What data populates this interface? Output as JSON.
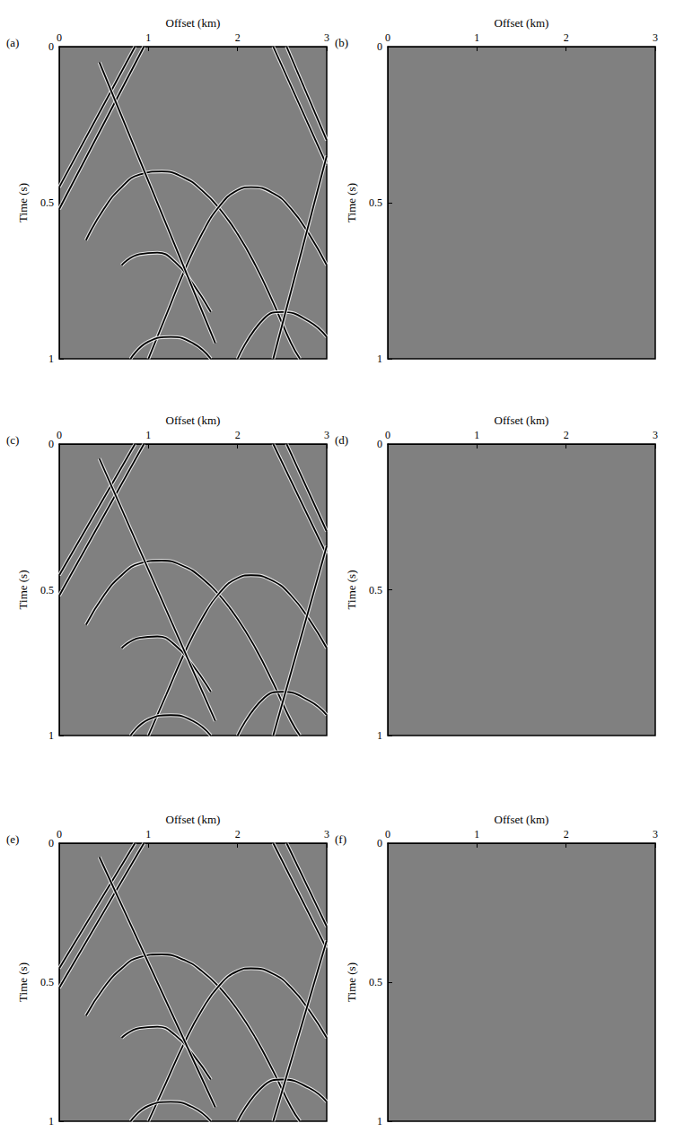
{
  "chart_data": [
    {
      "type": "line",
      "panel": "(a)",
      "x_label": "Offset (km)",
      "y_label": "Time (s)",
      "xlim": [
        0,
        3
      ],
      "xticks": [
        0,
        1,
        2,
        3
      ],
      "ylim": [
        0,
        1
      ],
      "yticks": [
        0,
        0.5,
        1
      ],
      "grid": false,
      "series": [
        {
          "color": "#000000",
          "values": [
            [
              0.3,
              0.62
            ],
            [
              0.5,
              0.52
            ],
            [
              0.7,
              0.45
            ],
            [
              0.9,
              0.41
            ],
            [
              1.15,
              0.4
            ],
            [
              1.4,
              0.42
            ],
            [
              1.6,
              0.46
            ],
            [
              1.8,
              0.52
            ],
            [
              2.0,
              0.6
            ],
            [
              2.2,
              0.7
            ],
            [
              2.4,
              0.82
            ],
            [
              2.6,
              0.95
            ],
            [
              2.7,
              1.0
            ]
          ]
        },
        {
          "color": "#000000",
          "values": [
            [
              1.0,
              1.0
            ],
            [
              1.2,
              0.86
            ],
            [
              1.4,
              0.72
            ],
            [
              1.6,
              0.6
            ],
            [
              1.8,
              0.51
            ],
            [
              2.0,
              0.46
            ],
            [
              2.15,
              0.45
            ],
            [
              2.4,
              0.47
            ],
            [
              2.6,
              0.52
            ],
            [
              2.8,
              0.6
            ],
            [
              3.0,
              0.7
            ]
          ]
        },
        {
          "color": "#000000",
          "values": [
            [
              0.7,
              0.7
            ],
            [
              0.9,
              0.665
            ],
            [
              1.1,
              0.66
            ],
            [
              1.3,
              0.69
            ],
            [
              1.5,
              0.76
            ],
            [
              1.7,
              0.85
            ]
          ]
        },
        {
          "color": "#000000",
          "values": [
            [
              0.8,
              1.0
            ],
            [
              1.0,
              0.945
            ],
            [
              1.25,
              0.93
            ],
            [
              1.5,
              0.95
            ],
            [
              1.7,
              1.0
            ]
          ]
        },
        {
          "color": "#000000",
          "values": [
            [
              2.0,
              1.0
            ],
            [
              2.3,
              0.87
            ],
            [
              2.5,
              0.85
            ],
            [
              2.8,
              0.88
            ],
            [
              3.0,
              0.93
            ]
          ]
        },
        {
          "color": "#000000",
          "values": [
            [
              0.85,
              0
            ],
            [
              0,
              0.45
            ]
          ]
        },
        {
          "color": "#000000",
          "values": [
            [
              0.95,
              0
            ],
            [
              0,
              0.52
            ]
          ]
        },
        {
          "color": "#000000",
          "values": [
            [
              2.4,
              0
            ],
            [
              3,
              0.38
            ]
          ]
        },
        {
          "color": "#000000",
          "values": [
            [
              2.55,
              0
            ],
            [
              3,
              0.3
            ]
          ]
        },
        {
          "color": "#000000",
          "values": [
            [
              0.45,
              0.05
            ],
            [
              1.75,
              0.95
            ]
          ]
        },
        {
          "color": "#000000",
          "values": [
            [
              3.0,
              0.35
            ],
            [
              2.4,
              1.0
            ]
          ]
        }
      ]
    },
    {
      "type": "line",
      "panel": "(b)",
      "x_label": "Offset (km)",
      "y_label": "Time (s)",
      "xlim": [
        0,
        3
      ],
      "xticks": [
        0,
        1,
        2,
        3
      ],
      "ylim": [
        0,
        1
      ],
      "yticks": [
        0,
        0.5,
        1
      ],
      "grid": false,
      "series": []
    },
    {
      "type": "line",
      "panel": "(c)",
      "x_label": "Offset (km)",
      "y_label": "Time (s)",
      "xlim": [
        0,
        3
      ],
      "xticks": [
        0,
        1,
        2,
        3
      ],
      "ylim": [
        0,
        1
      ],
      "yticks": [
        0,
        0.5,
        1
      ],
      "grid": false,
      "series": [
        {
          "color": "#000000",
          "values": [
            [
              0.3,
              0.62
            ],
            [
              0.5,
              0.52
            ],
            [
              0.7,
              0.45
            ],
            [
              0.9,
              0.41
            ],
            [
              1.15,
              0.4
            ],
            [
              1.4,
              0.42
            ],
            [
              1.6,
              0.46
            ],
            [
              1.8,
              0.52
            ],
            [
              2.0,
              0.6
            ],
            [
              2.2,
              0.7
            ],
            [
              2.4,
              0.82
            ],
            [
              2.6,
              0.95
            ],
            [
              2.7,
              1.0
            ]
          ]
        },
        {
          "color": "#000000",
          "values": [
            [
              1.0,
              1.0
            ],
            [
              1.2,
              0.86
            ],
            [
              1.4,
              0.72
            ],
            [
              1.6,
              0.6
            ],
            [
              1.8,
              0.51
            ],
            [
              2.0,
              0.46
            ],
            [
              2.15,
              0.45
            ],
            [
              2.4,
              0.47
            ],
            [
              2.6,
              0.52
            ],
            [
              2.8,
              0.6
            ],
            [
              3.0,
              0.7
            ]
          ]
        },
        {
          "color": "#000000",
          "values": [
            [
              0.7,
              0.7
            ],
            [
              0.9,
              0.665
            ],
            [
              1.1,
              0.66
            ],
            [
              1.3,
              0.69
            ],
            [
              1.5,
              0.76
            ],
            [
              1.7,
              0.85
            ]
          ]
        },
        {
          "color": "#000000",
          "values": [
            [
              0.8,
              1.0
            ],
            [
              1.0,
              0.945
            ],
            [
              1.25,
              0.93
            ],
            [
              1.5,
              0.95
            ],
            [
              1.7,
              1.0
            ]
          ]
        },
        {
          "color": "#000000",
          "values": [
            [
              2.0,
              1.0
            ],
            [
              2.3,
              0.87
            ],
            [
              2.5,
              0.85
            ],
            [
              2.8,
              0.88
            ],
            [
              3.0,
              0.93
            ]
          ]
        },
        {
          "color": "#000000",
          "values": [
            [
              0.85,
              0
            ],
            [
              0,
              0.45
            ]
          ]
        },
        {
          "color": "#000000",
          "values": [
            [
              0.95,
              0
            ],
            [
              0,
              0.52
            ]
          ]
        },
        {
          "color": "#000000",
          "values": [
            [
              2.4,
              0
            ],
            [
              3,
              0.38
            ]
          ]
        },
        {
          "color": "#000000",
          "values": [
            [
              2.55,
              0
            ],
            [
              3,
              0.3
            ]
          ]
        },
        {
          "color": "#000000",
          "values": [
            [
              0.45,
              0.05
            ],
            [
              1.75,
              0.95
            ]
          ]
        },
        {
          "color": "#000000",
          "values": [
            [
              3.0,
              0.35
            ],
            [
              2.4,
              1.0
            ]
          ]
        }
      ]
    },
    {
      "type": "line",
      "panel": "(d)",
      "x_label": "Offset (km)",
      "y_label": "Time (s)",
      "xlim": [
        0,
        3
      ],
      "xticks": [
        0,
        1,
        2,
        3
      ],
      "ylim": [
        0,
        1
      ],
      "yticks": [
        0,
        0.5,
        1
      ],
      "grid": false,
      "series": []
    },
    {
      "type": "line",
      "panel": "(e)",
      "x_label": "Offset (km)",
      "y_label": "Time (s)",
      "xlim": [
        0,
        3
      ],
      "xticks": [
        0,
        1,
        2,
        3
      ],
      "ylim": [
        0,
        1
      ],
      "yticks": [
        0,
        0.5,
        1
      ],
      "grid": false,
      "series": [
        {
          "color": "#000000",
          "values": [
            [
              0.3,
              0.62
            ],
            [
              0.5,
              0.52
            ],
            [
              0.7,
              0.45
            ],
            [
              0.9,
              0.41
            ],
            [
              1.15,
              0.4
            ],
            [
              1.4,
              0.42
            ],
            [
              1.6,
              0.46
            ],
            [
              1.8,
              0.52
            ],
            [
              2.0,
              0.6
            ],
            [
              2.2,
              0.7
            ],
            [
              2.4,
              0.82
            ],
            [
              2.6,
              0.95
            ],
            [
              2.7,
              1.0
            ]
          ]
        },
        {
          "color": "#000000",
          "values": [
            [
              1.0,
              1.0
            ],
            [
              1.2,
              0.86
            ],
            [
              1.4,
              0.72
            ],
            [
              1.6,
              0.6
            ],
            [
              1.8,
              0.51
            ],
            [
              2.0,
              0.46
            ],
            [
              2.15,
              0.45
            ],
            [
              2.4,
              0.47
            ],
            [
              2.6,
              0.52
            ],
            [
              2.8,
              0.6
            ],
            [
              3.0,
              0.7
            ]
          ]
        },
        {
          "color": "#000000",
          "values": [
            [
              0.7,
              0.7
            ],
            [
              0.9,
              0.665
            ],
            [
              1.1,
              0.66
            ],
            [
              1.3,
              0.69
            ],
            [
              1.5,
              0.76
            ],
            [
              1.7,
              0.85
            ]
          ]
        },
        {
          "color": "#000000",
          "values": [
            [
              0.8,
              1.0
            ],
            [
              1.0,
              0.945
            ],
            [
              1.25,
              0.93
            ],
            [
              1.5,
              0.95
            ],
            [
              1.7,
              1.0
            ]
          ]
        },
        {
          "color": "#000000",
          "values": [
            [
              2.0,
              1.0
            ],
            [
              2.3,
              0.87
            ],
            [
              2.5,
              0.85
            ],
            [
              2.8,
              0.88
            ],
            [
              3.0,
              0.93
            ]
          ]
        },
        {
          "color": "#000000",
          "values": [
            [
              0.85,
              0
            ],
            [
              0,
              0.45
            ]
          ]
        },
        {
          "color": "#000000",
          "values": [
            [
              0.95,
              0
            ],
            [
              0,
              0.52
            ]
          ]
        },
        {
          "color": "#000000",
          "values": [
            [
              2.4,
              0
            ],
            [
              3,
              0.38
            ]
          ]
        },
        {
          "color": "#000000",
          "values": [
            [
              2.55,
              0
            ],
            [
              3,
              0.3
            ]
          ]
        },
        {
          "color": "#000000",
          "values": [
            [
              0.45,
              0.05
            ],
            [
              1.75,
              0.95
            ]
          ]
        },
        {
          "color": "#000000",
          "values": [
            [
              3.0,
              0.35
            ],
            [
              2.4,
              1.0
            ]
          ]
        }
      ]
    },
    {
      "type": "line",
      "panel": "(f)",
      "x_label": "Offset (km)",
      "y_label": "Time (s)",
      "xlim": [
        0,
        3
      ],
      "xticks": [
        0,
        1,
        2,
        3
      ],
      "ylim": [
        0,
        1
      ],
      "yticks": [
        0,
        0.5,
        1
      ],
      "grid": false,
      "series": []
    }
  ]
}
